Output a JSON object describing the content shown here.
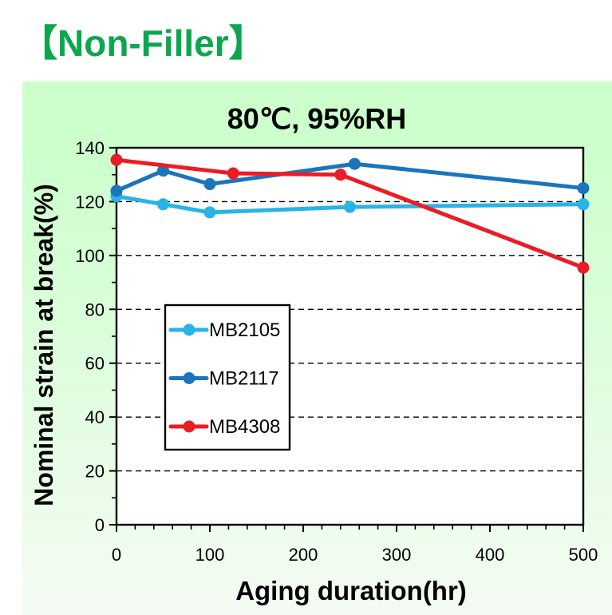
{
  "header": {
    "title": "【Non-Filler】",
    "color": "#0ca64e"
  },
  "panel": {
    "bg_top": "#ccffcc",
    "bg_bottom": "#f5fbf3"
  },
  "chart_data": {
    "type": "line",
    "title": "80℃, 95%RH",
    "xlabel": "Aging duration(hr)",
    "ylabel": "Nominal strain at break(%)",
    "xlim": [
      0,
      500
    ],
    "ylim": [
      0,
      140
    ],
    "xticks": [
      0,
      100,
      200,
      300,
      400,
      500
    ],
    "x_minor_step": 20,
    "yticks": [
      0,
      20,
      40,
      60,
      80,
      100,
      120,
      140
    ],
    "y_minor_step": 10,
    "grid_values": [
      20,
      40,
      60,
      80,
      100,
      120
    ],
    "grid_style": "dashed",
    "plot_bg": "#ffffff",
    "axis_color": "#000000",
    "legend": {
      "position": "inside-left",
      "items": [
        "MB2105",
        "MB2117",
        "MB4308"
      ]
    },
    "series": [
      {
        "name": "MB2105",
        "color": "#29b3e6",
        "x": [
          0,
          50,
          100,
          250,
          500
        ],
        "y": [
          122,
          119,
          116,
          118,
          119
        ]
      },
      {
        "name": "MB2117",
        "color": "#1b75bc",
        "x": [
          0,
          50,
          100,
          255,
          500
        ],
        "y": [
          124,
          131.5,
          126.5,
          134,
          125
        ]
      },
      {
        "name": "MB4308",
        "color": "#ec1c24",
        "x": [
          0,
          125,
          240,
          500
        ],
        "y": [
          135.5,
          130.5,
          130,
          95.5
        ]
      }
    ]
  }
}
